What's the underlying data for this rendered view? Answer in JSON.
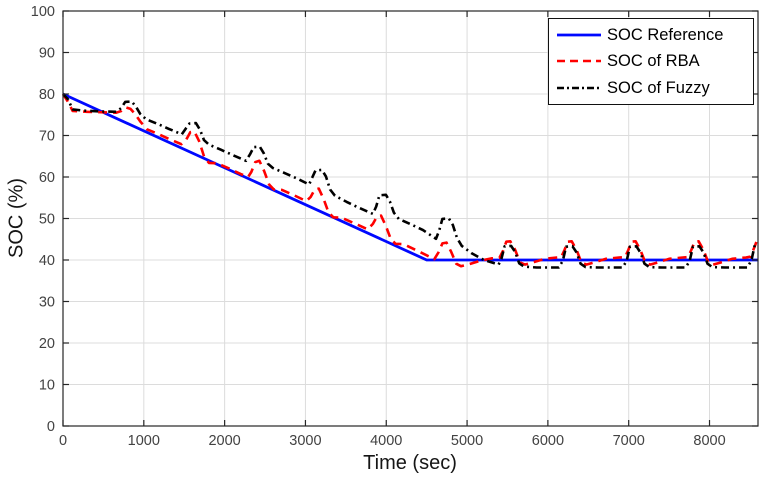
{
  "figure": {
    "xlabel": "Time (sec)",
    "ylabel": "SOC (%)"
  },
  "chart_data": {
    "type": "line",
    "title": "",
    "xlabel": "Time (sec)",
    "ylabel": "SOC (%)",
    "xlim": [
      0,
      8600
    ],
    "ylim": [
      0,
      100
    ],
    "xticks": [
      0,
      1000,
      2000,
      3000,
      4000,
      5000,
      6000,
      7000,
      8000
    ],
    "yticks": [
      0,
      10,
      20,
      30,
      40,
      50,
      60,
      70,
      80,
      90,
      100
    ],
    "grid": true,
    "legend_position": "top-right",
    "colors": {
      "axis": "#262626",
      "grid": "#dcdcdc",
      "tick_label": "#424242",
      "background": "#ffffff"
    },
    "series": [
      {
        "name": "SOC Reference",
        "color": "#0008ff",
        "style": "solid",
        "width": 2.8,
        "points": [
          [
            0,
            80
          ],
          [
            4500,
            40
          ],
          [
            8600,
            40
          ]
        ]
      },
      {
        "name": "SOC of RBA",
        "color": "#ff0000",
        "style": "dashed",
        "width": 2.6,
        "points": [
          [
            0,
            80
          ],
          [
            60,
            78.2
          ],
          [
            120,
            75.9
          ],
          [
            300,
            75.7
          ],
          [
            660,
            75.5
          ],
          [
            720,
            75.9
          ],
          [
            775,
            76.8
          ],
          [
            835,
            76.4
          ],
          [
            895,
            75.1
          ],
          [
            955,
            73.4
          ],
          [
            1040,
            71.5
          ],
          [
            1170,
            70.4
          ],
          [
            1320,
            69.1
          ],
          [
            1465,
            67.9
          ],
          [
            1525,
            69.0
          ],
          [
            1575,
            70.8
          ],
          [
            1625,
            71.0
          ],
          [
            1685,
            68.6
          ],
          [
            1745,
            65.0
          ],
          [
            1805,
            63.4
          ],
          [
            1905,
            63.3
          ],
          [
            2050,
            62.1
          ],
          [
            2200,
            60.7
          ],
          [
            2290,
            60.0
          ],
          [
            2330,
            61.2
          ],
          [
            2380,
            63.6
          ],
          [
            2430,
            63.9
          ],
          [
            2490,
            61.4
          ],
          [
            2550,
            58.2
          ],
          [
            2610,
            57.0
          ],
          [
            2710,
            56.9
          ],
          [
            2860,
            55.6
          ],
          [
            3010,
            54.2
          ],
          [
            3065,
            55.2
          ],
          [
            3115,
            57.0
          ],
          [
            3165,
            57.2
          ],
          [
            3225,
            54.7
          ],
          [
            3285,
            51.5
          ],
          [
            3345,
            50.3
          ],
          [
            3445,
            50.2
          ],
          [
            3600,
            48.9
          ],
          [
            3770,
            47.4
          ],
          [
            3835,
            48.7
          ],
          [
            3885,
            50.5
          ],
          [
            3935,
            50.7
          ],
          [
            3995,
            48.2
          ],
          [
            4055,
            45.1
          ],
          [
            4115,
            43.9
          ],
          [
            4215,
            43.8
          ],
          [
            4365,
            42.4
          ],
          [
            4525,
            40.9
          ],
          [
            4595,
            40.2
          ],
          [
            4645,
            41.8
          ],
          [
            4695,
            44.0
          ],
          [
            4745,
            44.2
          ],
          [
            4805,
            41.9
          ],
          [
            4865,
            39.1
          ],
          [
            4925,
            38.5
          ],
          [
            5010,
            38.9
          ],
          [
            5160,
            39.8
          ],
          [
            5310,
            40.4
          ],
          [
            5400,
            40.5
          ],
          [
            5445,
            42.2
          ],
          [
            5485,
            44.4
          ],
          [
            5535,
            44.5
          ],
          [
            5595,
            42.4
          ],
          [
            5655,
            39.4
          ],
          [
            5715,
            38.9
          ],
          [
            5810,
            39.4
          ],
          [
            5960,
            40.3
          ],
          [
            6110,
            40.6
          ],
          [
            6165,
            40.7
          ],
          [
            6205,
            42.4
          ],
          [
            6245,
            44.4
          ],
          [
            6295,
            44.5
          ],
          [
            6355,
            42.4
          ],
          [
            6415,
            39.4
          ],
          [
            6475,
            38.9
          ],
          [
            6570,
            39.4
          ],
          [
            6720,
            40.3
          ],
          [
            6880,
            40.6
          ],
          [
            6955,
            40.7
          ],
          [
            6995,
            42.4
          ],
          [
            7035,
            44.4
          ],
          [
            7085,
            44.5
          ],
          [
            7145,
            42.4
          ],
          [
            7205,
            39.4
          ],
          [
            7265,
            38.9
          ],
          [
            7360,
            39.4
          ],
          [
            7500,
            40.3
          ],
          [
            7670,
            40.6
          ],
          [
            7735,
            40.7
          ],
          [
            7775,
            42.4
          ],
          [
            7815,
            44.4
          ],
          [
            7865,
            44.5
          ],
          [
            7925,
            42.4
          ],
          [
            7985,
            39.4
          ],
          [
            8045,
            38.9
          ],
          [
            8140,
            39.4
          ],
          [
            8280,
            40.3
          ],
          [
            8450,
            40.6
          ],
          [
            8505,
            40.8
          ],
          [
            8545,
            42.6
          ],
          [
            8585,
            44.6
          ],
          [
            8600,
            44.8
          ]
        ]
      },
      {
        "name": "SOC of Fuzzy",
        "color": "#000000",
        "style": "dashdot",
        "width": 2.6,
        "points": [
          [
            0,
            80
          ],
          [
            60,
            78.8
          ],
          [
            120,
            76.3
          ],
          [
            250,
            76.0
          ],
          [
            450,
            75.8
          ],
          [
            660,
            75.7
          ],
          [
            720,
            76.6
          ],
          [
            770,
            78.1
          ],
          [
            850,
            78.2
          ],
          [
            905,
            76.9
          ],
          [
            955,
            75.2
          ],
          [
            1030,
            73.9
          ],
          [
            1160,
            72.9
          ],
          [
            1310,
            71.6
          ],
          [
            1470,
            70.3
          ],
          [
            1525,
            71.8
          ],
          [
            1565,
            72.9
          ],
          [
            1645,
            73.0
          ],
          [
            1695,
            71.4
          ],
          [
            1745,
            68.9
          ],
          [
            1805,
            67.8
          ],
          [
            1950,
            66.6
          ],
          [
            2110,
            65.2
          ],
          [
            2265,
            63.9
          ],
          [
            2315,
            65.5
          ],
          [
            2360,
            67.2
          ],
          [
            2435,
            67.3
          ],
          [
            2485,
            65.7
          ],
          [
            2535,
            63.2
          ],
          [
            2595,
            62.2
          ],
          [
            2750,
            60.9
          ],
          [
            2900,
            59.6
          ],
          [
            3045,
            58.2
          ],
          [
            3085,
            59.9
          ],
          [
            3125,
            61.6
          ],
          [
            3205,
            61.7
          ],
          [
            3255,
            60.1
          ],
          [
            3305,
            57.0
          ],
          [
            3365,
            55.5
          ],
          [
            3510,
            54.0
          ],
          [
            3660,
            52.6
          ],
          [
            3835,
            51.1
          ],
          [
            3875,
            52.9
          ],
          [
            3915,
            55.6
          ],
          [
            3995,
            55.7
          ],
          [
            4045,
            54.1
          ],
          [
            4095,
            51.4
          ],
          [
            4155,
            49.9
          ],
          [
            4305,
            48.6
          ],
          [
            4455,
            47.2
          ],
          [
            4615,
            45.1
          ],
          [
            4655,
            47.1
          ],
          [
            4695,
            49.9
          ],
          [
            4775,
            50.0
          ],
          [
            4825,
            48.4
          ],
          [
            4875,
            45.3
          ],
          [
            4935,
            43.4
          ],
          [
            5060,
            41.6
          ],
          [
            5210,
            40.0
          ],
          [
            5390,
            38.9
          ],
          [
            5425,
            40.3
          ],
          [
            5465,
            43.3
          ],
          [
            5545,
            43.4
          ],
          [
            5595,
            41.9
          ],
          [
            5645,
            39.2
          ],
          [
            5705,
            38.4
          ],
          [
            5860,
            38.2
          ],
          [
            6135,
            38.2
          ],
          [
            6185,
            39.8
          ],
          [
            6225,
            43.2
          ],
          [
            6305,
            43.3
          ],
          [
            6355,
            41.8
          ],
          [
            6405,
            39.1
          ],
          [
            6465,
            38.3
          ],
          [
            6620,
            38.2
          ],
          [
            6925,
            38.2
          ],
          [
            6975,
            39.8
          ],
          [
            7015,
            43.2
          ],
          [
            7095,
            43.3
          ],
          [
            7145,
            41.8
          ],
          [
            7195,
            39.1
          ],
          [
            7255,
            38.3
          ],
          [
            7410,
            38.2
          ],
          [
            7705,
            38.2
          ],
          [
            7755,
            39.8
          ],
          [
            7795,
            43.2
          ],
          [
            7875,
            43.3
          ],
          [
            7925,
            41.8
          ],
          [
            7975,
            39.1
          ],
          [
            8035,
            38.3
          ],
          [
            8190,
            38.2
          ],
          [
            8470,
            38.2
          ],
          [
            8520,
            40.0
          ],
          [
            8560,
            43.6
          ],
          [
            8600,
            44.1
          ]
        ]
      }
    ]
  }
}
